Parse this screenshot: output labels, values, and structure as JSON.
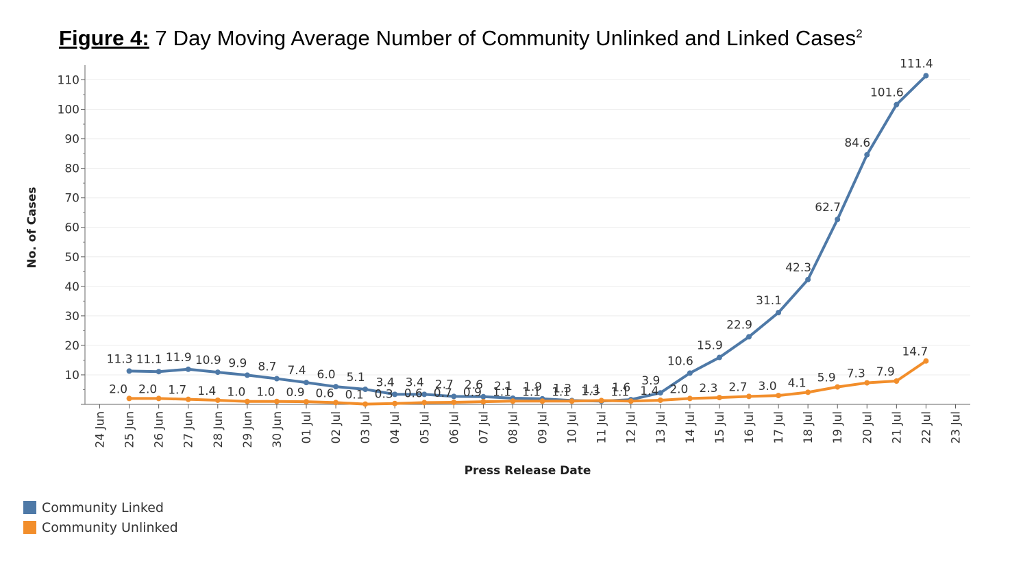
{
  "title": {
    "prefix": "Figure 4:",
    "text": "7 Day Moving Average Number of Community Unlinked and Linked Cases",
    "footnote": "2"
  },
  "colors": {
    "linked": "#4e79a7",
    "unlinked": "#f28e2b"
  },
  "chart_data": {
    "type": "line",
    "title": "7 Day Moving Average Number of Community Unlinked and Linked Cases",
    "xlabel": "Press Release Date",
    "ylabel": "No. of Cases",
    "x": [
      "24 Jun",
      "25 Jun",
      "26 Jun",
      "27 Jun",
      "28 Jun",
      "29 Jun",
      "30 Jun",
      "01 Jul",
      "02 Jul",
      "03 Jul",
      "04 Jul",
      "05 Jul",
      "06 Jul",
      "07 Jul",
      "08 Jul",
      "09 Jul",
      "10 Jul",
      "11 Jul",
      "12 Jul",
      "13 Jul",
      "14 Jul",
      "15 Jul",
      "16 Jul",
      "17 Jul",
      "18 Jul",
      "19 Jul",
      "20 Jul",
      "21 Jul",
      "22 Jul",
      "23 Jul"
    ],
    "ylim": [
      0,
      115
    ],
    "yticks": [
      10,
      20,
      30,
      40,
      50,
      60,
      70,
      80,
      90,
      100,
      110
    ],
    "grid": true,
    "legend_position": "bottom-left",
    "series": [
      {
        "name": "Community Linked",
        "color": "#4e79a7",
        "values": [
          null,
          11.3,
          11.1,
          11.9,
          10.9,
          9.9,
          8.7,
          7.4,
          6.0,
          5.1,
          3.4,
          3.4,
          2.7,
          2.6,
          2.1,
          1.9,
          1.3,
          1.1,
          1.6,
          3.9,
          10.6,
          15.9,
          22.9,
          31.1,
          42.3,
          62.7,
          84.6,
          101.6,
          111.4,
          null
        ]
      },
      {
        "name": "Community Unlinked",
        "color": "#f28e2b",
        "values": [
          null,
          2.0,
          2.0,
          1.7,
          1.4,
          1.0,
          1.0,
          0.9,
          0.6,
          0.1,
          0.3,
          0.6,
          0.7,
          0.9,
          1.1,
          1.1,
          1.1,
          1.3,
          1.1,
          1.4,
          2.0,
          2.3,
          2.7,
          3.0,
          4.1,
          5.9,
          7.3,
          7.9,
          14.7,
          null
        ]
      }
    ]
  },
  "legend": [
    {
      "label": "Community Linked",
      "color": "#4e79a7"
    },
    {
      "label": "Community Unlinked",
      "color": "#f28e2b"
    }
  ]
}
